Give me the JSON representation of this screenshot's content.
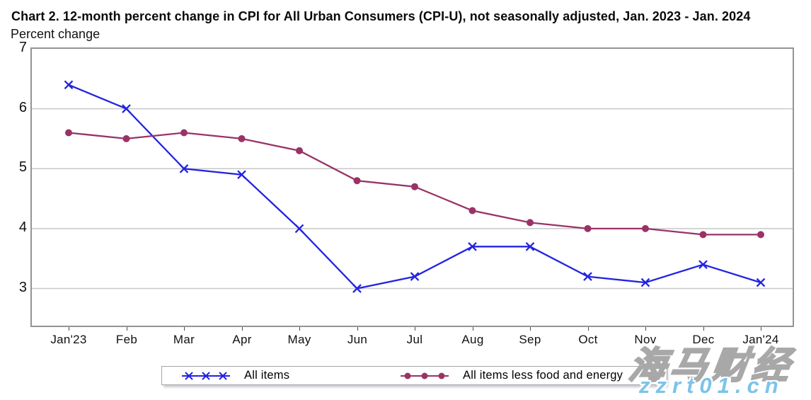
{
  "header": {
    "title": "Chart 2. 12-month percent change in CPI for All Urban Consumers (CPI-U), not seasonally adjusted, Jan. 2023 - Jan. 2024",
    "subtitle": "Percent change"
  },
  "chart_data": {
    "type": "line",
    "title": "Chart 2. 12-month percent change in CPI for All Urban Consumers (CPI-U), not seasonally adjusted, Jan. 2023 - Jan. 2024",
    "xlabel": "",
    "ylabel": "Percent change",
    "categories": [
      "Jan'23",
      "Feb",
      "Mar",
      "Apr",
      "May",
      "Jun",
      "Jul",
      "Aug",
      "Sep",
      "Oct",
      "Nov",
      "Dec",
      "Jan'24"
    ],
    "series": [
      {
        "name": "All items",
        "marker": "x",
        "color": "#2323e2",
        "values": [
          6.4,
          6.0,
          5.0,
          4.9,
          4.0,
          3.0,
          3.2,
          3.7,
          3.7,
          3.2,
          3.1,
          3.4,
          3.1
        ]
      },
      {
        "name": "All items less food and energy",
        "marker": "circle",
        "color": "#993366",
        "values": [
          5.6,
          5.5,
          5.6,
          5.5,
          5.3,
          4.8,
          4.7,
          4.3,
          4.1,
          4.0,
          4.0,
          3.9,
          3.9
        ]
      }
    ],
    "yticks": [
      7,
      6,
      5,
      4,
      3
    ],
    "ylim": [
      2.38,
      7
    ],
    "grid": true,
    "legend_position": "bottom"
  },
  "watermark": {
    "text_cn": "海马财经",
    "text_url": "zzrt01.cn",
    "url_color": "#7cc3ea"
  },
  "colors": {
    "all_items": "#2323e2",
    "core": "#993366",
    "gridline": "#c8c8c8",
    "plot_border": "#949494",
    "tick": "#4a4a4a"
  }
}
